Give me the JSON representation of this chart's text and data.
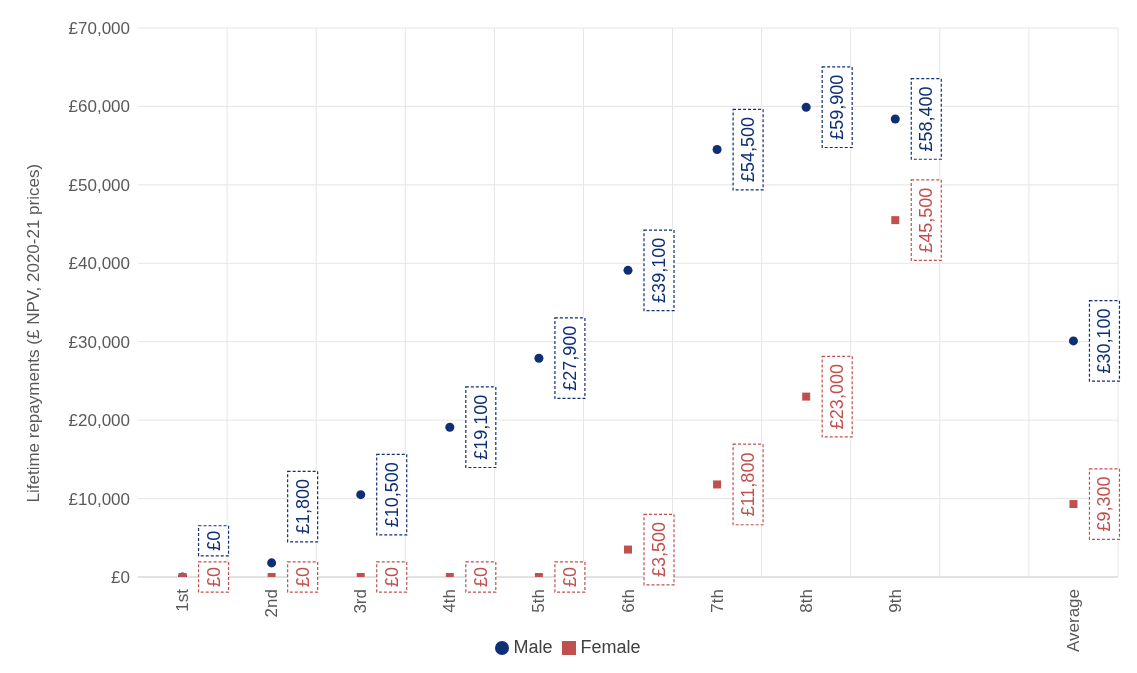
{
  "chart_data": {
    "type": "scatter",
    "ylabel": "Lifetime repayments (£ NPV, 2020-21 prices)",
    "categories": [
      "1st",
      "2nd",
      "3rd",
      "4th",
      "5th",
      "6th",
      "7th",
      "8th",
      "9th",
      null,
      "Average"
    ],
    "series": [
      {
        "name": "Male",
        "color": "#0e2f75",
        "marker": "circle",
        "values": [
          0,
          1800,
          10500,
          19100,
          27900,
          39100,
          54500,
          59900,
          58400,
          null,
          30100
        ],
        "value_labels": [
          "£0",
          "£1,800",
          "£10,500",
          "£19,100",
          "£27,900",
          "£39,100",
          "£54,500",
          "£59,900",
          "£58,400",
          null,
          "£30,100"
        ]
      },
      {
        "name": "Female",
        "color": "#c0504d",
        "marker": "square",
        "values": [
          0,
          0,
          0,
          0,
          0,
          3500,
          11800,
          23000,
          45500,
          null,
          9300
        ],
        "value_labels": [
          "£0",
          "£0",
          "£0",
          "£0",
          "£0",
          "£3,500",
          "£11,800",
          "£23,000",
          "£45,500",
          null,
          "£9,300"
        ]
      }
    ],
    "ylim": [
      0,
      70000
    ],
    "yticks": [
      {
        "value": 0,
        "label": "£0"
      },
      {
        "value": 10000,
        "label": "£10,000"
      },
      {
        "value": 20000,
        "label": "£20,000"
      },
      {
        "value": 30000,
        "label": "£30,000"
      },
      {
        "value": 40000,
        "label": "£40,000"
      },
      {
        "value": 50000,
        "label": "£50,000"
      },
      {
        "value": 60000,
        "label": "£60,000"
      },
      {
        "value": 70000,
        "label": "£70,000"
      }
    ],
    "grid": true,
    "legend": "bottom"
  }
}
